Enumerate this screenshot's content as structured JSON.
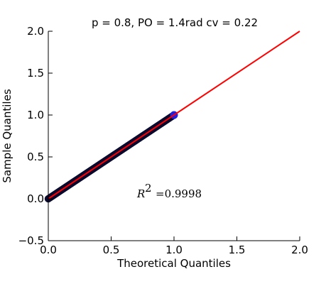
{
  "chart_data": {
    "type": "scatter",
    "title": "p = 0.8, PO = 1.4rad cv = 0.22",
    "xlabel": "Theoretical Quantiles",
    "ylabel": "Sample Quantiles",
    "xlim": [
      0.0,
      2.0
    ],
    "ylim": [
      -0.5,
      2.0
    ],
    "x_ticks": [
      "0.0",
      "0.5",
      "1.0",
      "1.5",
      "2.0"
    ],
    "y_ticks": [
      "−0.5",
      "0.0",
      "0.5",
      "1.0",
      "1.5",
      "2.0"
    ],
    "grid": false,
    "series": [
      {
        "kind": "points",
        "x_range": [
          0.0,
          1.0
        ],
        "y_range": [
          0.0,
          1.0
        ],
        "color": "#0a0a2e",
        "endpoint_color": "#2020e0"
      },
      {
        "kind": "reference_line",
        "x": [
          0.0,
          2.0
        ],
        "y": [
          0.0,
          2.0
        ],
        "color": "#ff0000"
      }
    ],
    "annotation": {
      "symbol": "R",
      "superscript": "2",
      "value_text": "=0.9998",
      "position": "center"
    }
  }
}
